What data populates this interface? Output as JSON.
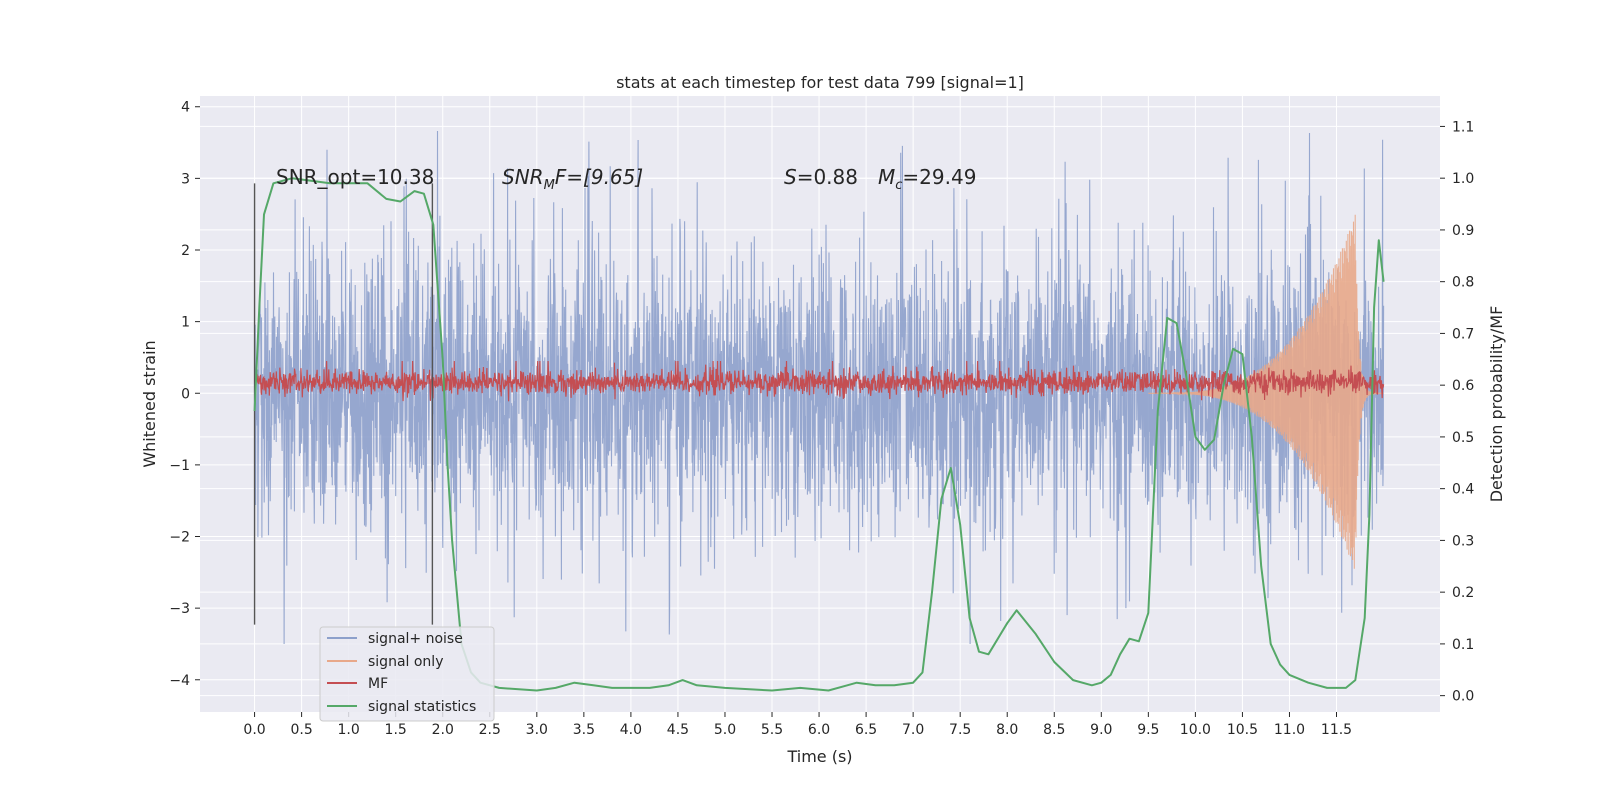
{
  "chart_data": {
    "type": "line",
    "title": "stats at each timestep for test data 799 [signal=1]",
    "xlabel": "Time (s)",
    "ylabel": "Whitened strain",
    "y2label": "Detection probability/MF",
    "xlim": [
      -0.58,
      12.6
    ],
    "ylim": [
      -4.45,
      4.15
    ],
    "y2lim": [
      -0.0316,
      1.1588
    ],
    "xticks": [
      "0.0",
      "0.5",
      "1.0",
      "1.5",
      "2.0",
      "2.5",
      "3.0",
      "3.5",
      "4.0",
      "4.5",
      "5.0",
      "5.5",
      "6.0",
      "6.5",
      "7.0",
      "7.5",
      "8.0",
      "8.5",
      "9.0",
      "9.5",
      "10.0",
      "10.5",
      "11.0",
      "11.5"
    ],
    "yticks": [
      "−4",
      "−3",
      "−2",
      "−1",
      "0",
      "1",
      "2",
      "3",
      "4"
    ],
    "y2ticks": [
      "0.0",
      "0.1",
      "0.2",
      "0.3",
      "0.4",
      "0.5",
      "0.6",
      "0.7",
      "0.8",
      "0.9",
      "1.0",
      "1.1"
    ],
    "grid": true,
    "legend_position": "lower-left",
    "vlines": [
      0.0,
      1.89
    ],
    "annotations": {
      "snr_opt": "SNR_opt=10.38",
      "snr_mf_main": "SNR",
      "snr_mf_sub": "M",
      "snr_mf_rest": "F=[9.65]",
      "s_main": "S",
      "s_rest": "=0.88",
      "mc_main": "M",
      "mc_sub": "c",
      "mc_rest": "=29.49"
    },
    "series": [
      {
        "name": "signal+ noise",
        "color": "#8da0cb",
        "axis": "left",
        "kind": "noise",
        "x_range": [
          0.0,
          12.0
        ],
        "typical_amplitude": 1.6,
        "peak_range": [
          -3.5,
          3.75
        ]
      },
      {
        "name": "signal only",
        "color": "#e8a88a",
        "axis": "left",
        "kind": "chirp",
        "x_range": [
          9.5,
          12.0
        ],
        "peak_time": 11.7,
        "peak_amplitude": 2.5
      },
      {
        "name": "MF",
        "color": "#c44e52",
        "axis": "left",
        "kind": "band",
        "x_range": [
          0.0,
          12.0
        ],
        "center": 0.15,
        "spread": 0.12
      },
      {
        "name": "signal statistics",
        "color": "#55a868",
        "axis": "right",
        "kind": "line",
        "x": [
          0.0,
          0.05,
          0.1,
          0.2,
          0.4,
          0.8,
          1.2,
          1.4,
          1.55,
          1.7,
          1.8,
          1.9,
          2.0,
          2.05,
          2.1,
          2.2,
          2.3,
          2.4,
          2.6,
          3.0,
          3.2,
          3.4,
          3.6,
          3.8,
          4.0,
          4.2,
          4.4,
          4.55,
          4.7,
          5.0,
          5.5,
          5.8,
          6.1,
          6.3,
          6.4,
          6.6,
          6.8,
          7.0,
          7.1,
          7.2,
          7.3,
          7.4,
          7.5,
          7.6,
          7.7,
          7.8,
          8.0,
          8.1,
          8.3,
          8.5,
          8.7,
          8.9,
          9.0,
          9.1,
          9.2,
          9.3,
          9.4,
          9.5,
          9.6,
          9.7,
          9.8,
          9.9,
          10.0,
          10.1,
          10.2,
          10.3,
          10.4,
          10.5,
          10.6,
          10.7,
          10.8,
          10.9,
          11.0,
          11.2,
          11.4,
          11.6,
          11.7,
          11.8,
          11.85,
          11.9,
          11.95,
          12.0
        ],
        "values": [
          0.55,
          0.75,
          0.93,
          0.99,
          1.0,
          0.99,
          0.99,
          0.96,
          0.955,
          0.975,
          0.97,
          0.91,
          0.65,
          0.45,
          0.3,
          0.1,
          0.045,
          0.025,
          0.015,
          0.01,
          0.015,
          0.025,
          0.02,
          0.015,
          0.015,
          0.015,
          0.02,
          0.03,
          0.02,
          0.015,
          0.01,
          0.015,
          0.01,
          0.02,
          0.025,
          0.02,
          0.02,
          0.025,
          0.045,
          0.2,
          0.38,
          0.44,
          0.33,
          0.15,
          0.085,
          0.08,
          0.14,
          0.165,
          0.12,
          0.065,
          0.03,
          0.02,
          0.025,
          0.04,
          0.08,
          0.11,
          0.105,
          0.16,
          0.55,
          0.73,
          0.72,
          0.62,
          0.5,
          0.475,
          0.495,
          0.6,
          0.67,
          0.66,
          0.5,
          0.25,
          0.1,
          0.06,
          0.04,
          0.025,
          0.015,
          0.015,
          0.03,
          0.15,
          0.35,
          0.75,
          0.88,
          0.8
        ]
      }
    ]
  }
}
